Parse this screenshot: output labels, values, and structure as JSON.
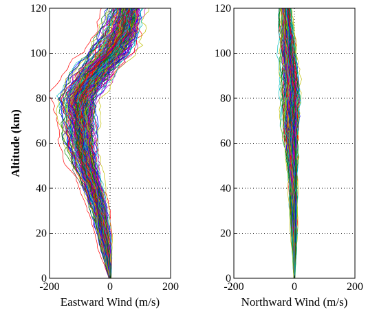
{
  "chart_data": [
    {
      "type": "line",
      "xlabel": "Eastward Wind (m/s)",
      "ylabel": "Altitude (km)",
      "xlim": [
        -200,
        200
      ],
      "ylim": [
        0,
        120
      ],
      "xticks": [
        -200,
        0,
        200
      ],
      "yticks": [
        0,
        20,
        40,
        60,
        80,
        100,
        120
      ],
      "grid": "dotted",
      "series_count": 200,
      "mean_profile": {
        "altitude_km": [
          0,
          10,
          20,
          30,
          40,
          50,
          60,
          70,
          80,
          90,
          100,
          110,
          120
        ],
        "wind_ms": [
          0,
          -8,
          -20,
          -35,
          -55,
          -80,
          -95,
          -100,
          -105,
          -60,
          0,
          40,
          55
        ]
      },
      "spread_profile": {
        "altitude_km": [
          0,
          10,
          20,
          30,
          40,
          50,
          60,
          70,
          80,
          90,
          100,
          110,
          120
        ],
        "wind_ms": [
          2,
          8,
          12,
          15,
          18,
          22,
          28,
          30,
          35,
          40,
          40,
          35,
          30
        ]
      }
    },
    {
      "type": "line",
      "xlabel": "Northward Wind (m/s)",
      "ylabel": "",
      "xlim": [
        -200,
        200
      ],
      "ylim": [
        0,
        120
      ],
      "xticks": [
        -200,
        0,
        200
      ],
      "yticks": [
        0,
        20,
        40,
        60,
        80,
        100,
        120
      ],
      "grid": "dotted",
      "series_count": 200,
      "mean_profile": {
        "altitude_km": [
          0,
          10,
          20,
          30,
          40,
          50,
          60,
          70,
          80,
          90,
          100,
          110,
          120
        ],
        "wind_ms": [
          0,
          0,
          -1,
          -2,
          -3,
          -6,
          -10,
          -12,
          -12,
          -15,
          -20,
          -25,
          -30
        ]
      },
      "spread_profile": {
        "altitude_km": [
          0,
          10,
          20,
          30,
          40,
          50,
          60,
          70,
          80,
          90,
          100,
          110,
          120
        ],
        "wind_ms": [
          1,
          3,
          5,
          6,
          7,
          9,
          12,
          15,
          16,
          15,
          14,
          12,
          10
        ]
      }
    }
  ],
  "colors": [
    "#0000ff",
    "#008000",
    "#ff0000",
    "#00bfbf",
    "#bf00bf",
    "#bfbf00",
    "#404040"
  ]
}
